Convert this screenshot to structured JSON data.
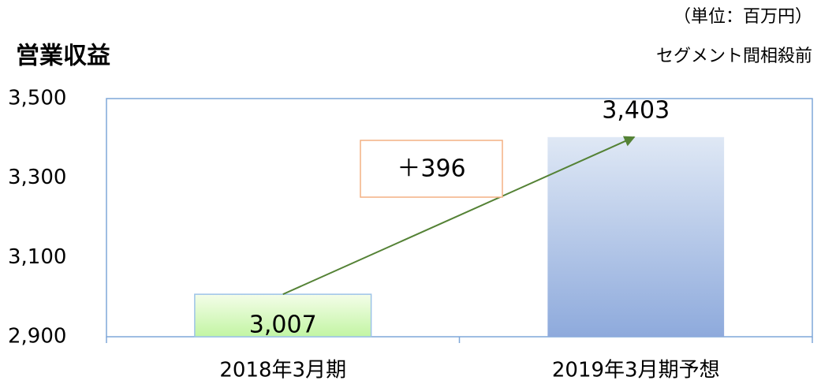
{
  "chart_data": {
    "type": "bar",
    "title": "営業収益",
    "subtitle": [
      "（単位：百万円）",
      "セグメント間相殺前"
    ],
    "categories": [
      "2018年3月期",
      "2019年3月期予想"
    ],
    "values": [
      3007,
      3403
    ],
    "value_labels": [
      "3,007",
      "3,403"
    ],
    "colors": [
      [
        "#f4fde9",
        "#c2f5a3"
      ],
      [
        "#dfe8f5",
        "#8eaadc"
      ]
    ],
    "ylim": [
      2900,
      3500
    ],
    "yticks": [
      {
        "value": 2900,
        "label": "2,900"
      },
      {
        "value": 3100,
        "label": "3,100"
      },
      {
        "value": 3300,
        "label": "3,300"
      },
      {
        "value": 3500,
        "label": "3,500"
      }
    ],
    "grid": false,
    "annotation": "＋396"
  }
}
